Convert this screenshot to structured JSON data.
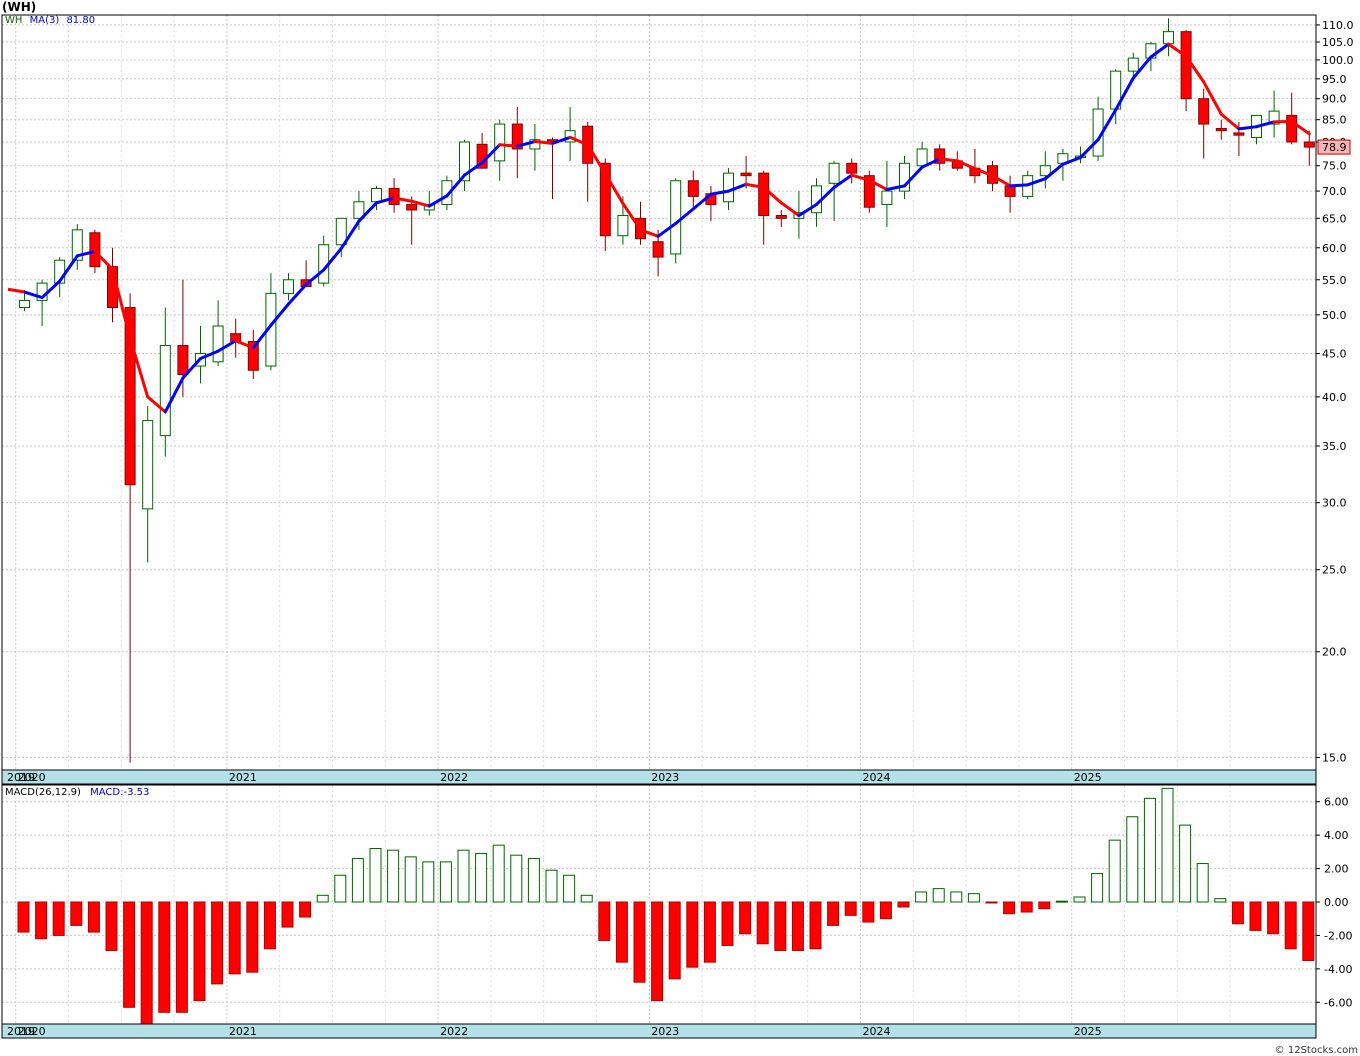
{
  "header": {
    "title": "(WH)"
  },
  "price_legend": {
    "symbol": "WH",
    "ma_label": "MA(3)",
    "ma_value": "81.80"
  },
  "macd_legend": {
    "label": "MACD(26,12,9)",
    "value_label": "MACD:-3.53"
  },
  "last_price_label": "78.9",
  "credit": "© 12Stocks.com",
  "colors": {
    "up": "#006400",
    "down": "#ff0000",
    "ma_up": "#0000ff",
    "ma_down": "#ff0000",
    "axis_band": "#b4e0e8",
    "grid": "#c0c0c0",
    "last_price_bg": "#f4b6b6"
  },
  "chart_data": [
    {
      "type": "candlestick",
      "scale": "log",
      "ylim": [
        14.5,
        113
      ],
      "yticks": [
        "15.0",
        "20.0",
        "25.0",
        "30.0",
        "35.0",
        "40.0",
        "45.0",
        "50.0",
        "55.0",
        "60.0",
        "65.0",
        "70.0",
        "75.0",
        "80.0",
        "85.0",
        "90.0",
        "95.0",
        "100.0",
        "105.0",
        "110.0"
      ],
      "year_labels": [
        {
          "label": "2019",
          "month_index": -1
        },
        {
          "label": "2020",
          "month_index": 0
        },
        {
          "label": "2021",
          "month_index": 12
        },
        {
          "label": "2022",
          "month_index": 24
        },
        {
          "label": "2023",
          "month_index": 36
        },
        {
          "label": "2024",
          "month_index": 48
        },
        {
          "label": "2025",
          "month_index": 60
        }
      ],
      "ohlc": [
        [
          51.0,
          53.5,
          50.5,
          52.0
        ],
        [
          52.0,
          55.0,
          48.5,
          54.5
        ],
        [
          54.5,
          58.5,
          52.5,
          58.0
        ],
        [
          58.0,
          64.0,
          56.5,
          63.0
        ],
        [
          62.5,
          63.0,
          56.0,
          57.0
        ],
        [
          57.0,
          60.0,
          49.0,
          51.0
        ],
        [
          51.0,
          53.0,
          14.8,
          31.5
        ],
        [
          29.5,
          39.0,
          25.5,
          37.5
        ],
        [
          36.0,
          51.0,
          34.0,
          46.0
        ],
        [
          46.0,
          55.0,
          40.0,
          42.5
        ],
        [
          43.5,
          48.5,
          41.5,
          45.0
        ],
        [
          44.0,
          52.0,
          43.5,
          48.5
        ],
        [
          47.5,
          49.5,
          44.5,
          46.5
        ],
        [
          46.5,
          48.0,
          42.0,
          43.0
        ],
        [
          43.5,
          56.0,
          43.0,
          53.0
        ],
        [
          53.0,
          56.0,
          52.0,
          55.0
        ],
        [
          55.0,
          58.0,
          54.0,
          54.0
        ],
        [
          54.5,
          62.0,
          54.0,
          60.5
        ],
        [
          60.5,
          65.0,
          58.5,
          65.0
        ],
        [
          65.0,
          70.0,
          63.0,
          68.0
        ],
        [
          68.0,
          71.0,
          66.5,
          70.5
        ],
        [
          70.5,
          72.5,
          66.0,
          67.5
        ],
        [
          67.5,
          69.0,
          60.5,
          66.5
        ],
        [
          66.5,
          70.0,
          65.5,
          67.5
        ],
        [
          67.5,
          73.0,
          66.5,
          72.0
        ],
        [
          72.0,
          80.5,
          70.0,
          80.0
        ],
        [
          79.5,
          82.0,
          74.5,
          74.5
        ],
        [
          76.0,
          85.0,
          72.0,
          84.0
        ],
        [
          84.0,
          88.0,
          72.5,
          78.5
        ],
        [
          78.5,
          84.0,
          74.0,
          80.5
        ],
        [
          80.5,
          81.0,
          68.5,
          80.0
        ],
        [
          80.0,
          88.0,
          76.0,
          82.5
        ],
        [
          83.5,
          84.5,
          68.0,
          75.5
        ],
        [
          75.5,
          76.5,
          59.5,
          62.0
        ],
        [
          62.0,
          69.0,
          60.5,
          65.5
        ],
        [
          65.0,
          68.0,
          60.5,
          61.5
        ],
        [
          61.0,
          63.0,
          55.5,
          58.5
        ],
        [
          59.0,
          72.5,
          57.5,
          72.0
        ],
        [
          72.0,
          74.0,
          67.0,
          69.0
        ],
        [
          69.5,
          71.0,
          64.5,
          67.5
        ],
        [
          68.0,
          74.5,
          66.5,
          73.5
        ],
        [
          73.5,
          77.0,
          70.5,
          73.0
        ],
        [
          73.5,
          74.0,
          60.5,
          65.5
        ],
        [
          65.5,
          66.5,
          63.5,
          65.0
        ],
        [
          65.0,
          70.0,
          61.5,
          66.0
        ],
        [
          66.0,
          72.5,
          63.5,
          71.0
        ],
        [
          71.5,
          76.0,
          64.5,
          75.5
        ],
        [
          75.5,
          76.5,
          71.5,
          73.5
        ],
        [
          73.0,
          74.0,
          66.0,
          67.0
        ],
        [
          67.5,
          76.0,
          63.5,
          70.0
        ],
        [
          70.0,
          77.0,
          68.5,
          75.5
        ],
        [
          75.0,
          80.0,
          74.5,
          78.5
        ],
        [
          78.5,
          79.5,
          74.0,
          75.5
        ],
        [
          76.0,
          78.0,
          74.0,
          74.5
        ],
        [
          74.5,
          78.5,
          71.5,
          73.0
        ],
        [
          75.0,
          76.0,
          70.0,
          71.5
        ],
        [
          71.0,
          73.0,
          66.0,
          69.0
        ],
        [
          69.0,
          74.0,
          68.5,
          73.0
        ],
        [
          73.0,
          78.0,
          70.5,
          75.0
        ],
        [
          75.5,
          78.5,
          72.0,
          77.5
        ],
        [
          77.0,
          79.0,
          75.5,
          77.0
        ],
        [
          77.0,
          90.5,
          76.0,
          87.5
        ],
        [
          87.5,
          97.5,
          84.0,
          97.0
        ],
        [
          97.0,
          102.0,
          94.5,
          100.5
        ],
        [
          100.5,
          105.0,
          97.0,
          104.5
        ],
        [
          104.5,
          112.0,
          101.0,
          108.0
        ],
        [
          108.0,
          108.5,
          87.0,
          90.0
        ],
        [
          90.0,
          92.5,
          76.5,
          84.0
        ],
        [
          83.0,
          85.0,
          80.5,
          82.5
        ],
        [
          82.0,
          84.5,
          77.0,
          81.5
        ],
        [
          81.0,
          86.0,
          79.5,
          86.0
        ],
        [
          84.0,
          92.0,
          81.0,
          87.0
        ],
        [
          86.0,
          91.5,
          79.5,
          80.0
        ],
        [
          80.0,
          82.5,
          75.0,
          78.9
        ]
      ],
      "ma3": [
        53.2,
        52.4,
        54.8,
        58.7,
        59.4,
        56.6,
        46.9,
        40.0,
        38.4,
        42.1,
        44.4,
        45.3,
        46.6,
        45.7,
        48.6,
        51.5,
        54.3,
        56.5,
        59.9,
        64.5,
        67.8,
        68.7,
        68.1,
        67.2,
        69.1,
        73.1,
        75.6,
        79.4,
        79.1,
        80.1,
        79.7,
        81.0,
        79.4,
        73.4,
        67.7,
        63.0,
        61.9,
        64.1,
        66.7,
        69.4,
        70.0,
        71.3,
        70.7,
        67.8,
        65.5,
        67.5,
        70.7,
        73.1,
        72.1,
        70.3,
        71.0,
        74.7,
        76.4,
        76.0,
        74.4,
        73.0,
        71.0,
        71.2,
        72.4,
        75.3,
        76.7,
        80.5,
        87.3,
        95.2,
        100.8,
        104.4,
        101.0,
        94.2,
        86.3,
        82.9,
        83.4,
        84.5,
        84.6,
        81.8
      ],
      "ma_colors": [
        "r",
        "b",
        "b",
        "b",
        "b",
        "r",
        "r",
        "r",
        "r",
        "b",
        "b",
        "b",
        "b",
        "r",
        "b",
        "b",
        "b",
        "b",
        "b",
        "b",
        "b",
        "b",
        "r",
        "r",
        "b",
        "b",
        "b",
        "b",
        "r",
        "b",
        "r",
        "b",
        "r",
        "r",
        "r",
        "r",
        "r",
        "b",
        "b",
        "b",
        "b",
        "b",
        "r",
        "r",
        "r",
        "b",
        "b",
        "b",
        "r",
        "r",
        "b",
        "b",
        "b",
        "r",
        "r",
        "r",
        "r",
        "b",
        "b",
        "b",
        "b",
        "b",
        "b",
        "b",
        "b",
        "b",
        "r",
        "r",
        "r",
        "r",
        "b",
        "b",
        "r",
        "r"
      ],
      "macd_hist": [
        -1.8,
        -2.2,
        -2.0,
        -1.4,
        -1.8,
        -2.9,
        -6.3,
        -7.3,
        -6.6,
        -6.6,
        -5.9,
        -4.9,
        -4.3,
        -4.2,
        -2.8,
        -1.5,
        -0.9,
        0.4,
        1.6,
        2.6,
        3.2,
        3.1,
        2.7,
        2.4,
        2.4,
        3.1,
        2.9,
        3.4,
        2.8,
        2.6,
        1.9,
        1.6,
        0.4,
        -2.3,
        -3.6,
        -4.8,
        -5.9,
        -4.6,
        -3.9,
        -3.6,
        -2.6,
        -1.9,
        -2.5,
        -2.9,
        -2.9,
        -2.8,
        -1.4,
        -0.8,
        -1.2,
        -1.0,
        -0.3,
        0.6,
        0.8,
        0.6,
        0.5,
        -0.05,
        -0.7,
        -0.6,
        -0.4,
        0.05,
        0.3,
        1.7,
        3.7,
        5.1,
        6.2,
        6.8,
        4.6,
        2.3,
        0.2,
        -1.3,
        -1.7,
        -1.9,
        -2.8,
        -3.5
      ],
      "macd_ylim": [
        -7.3,
        7.0
      ],
      "macd_yticks": [
        "6.00",
        "4.00",
        "2.00",
        "0.00",
        "-2.00",
        "-4.00",
        "-6.00"
      ]
    }
  ]
}
